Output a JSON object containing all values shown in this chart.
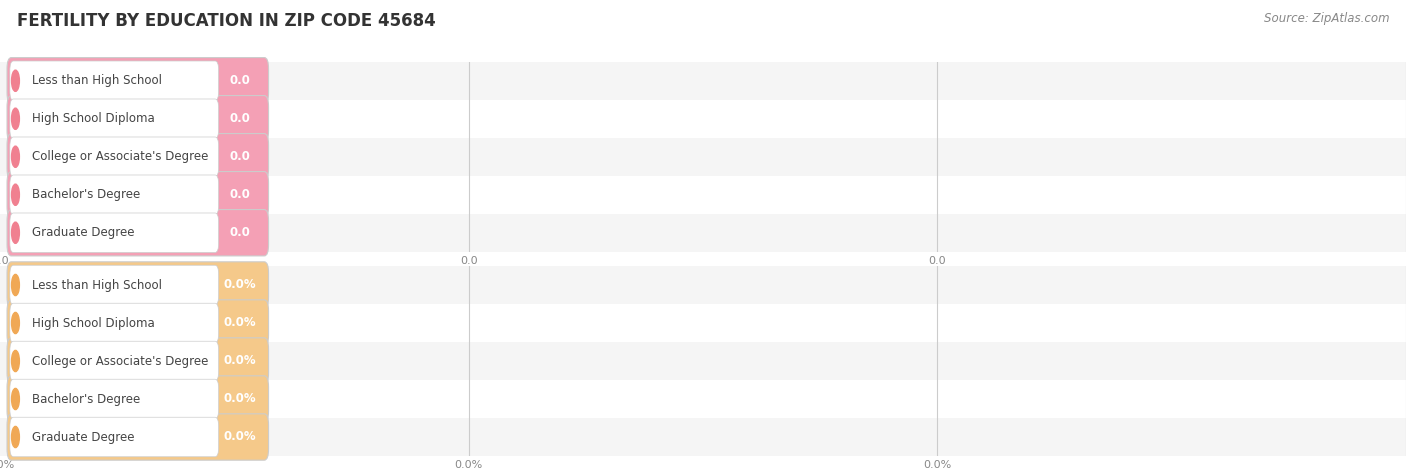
{
  "title": "FERTILITY BY EDUCATION IN ZIP CODE 45684",
  "source": "Source: ZipAtlas.com",
  "categories": [
    "Less than High School",
    "High School Diploma",
    "College or Associate's Degree",
    "Bachelor's Degree",
    "Graduate Degree"
  ],
  "top_values": [
    0.0,
    0.0,
    0.0,
    0.0,
    0.0
  ],
  "bottom_values": [
    0.0,
    0.0,
    0.0,
    0.0,
    0.0
  ],
  "top_bar_color": "#f4a0b5",
  "top_circle_color": "#f08090",
  "bottom_bar_color": "#f5c98a",
  "bottom_circle_color": "#f0a855",
  "pill_bg_color": "#ffffff",
  "pill_border_color": "#cccccc",
  "row_bg_even": "#f5f5f5",
  "row_bg_odd": "#ffffff",
  "background_color": "#ffffff",
  "title_fontsize": 12,
  "source_fontsize": 8.5,
  "label_fontsize": 8.5,
  "value_fontsize": 8.5,
  "axis_fontsize": 8,
  "axis_label_color": "#888888",
  "label_text_color": "#444444",
  "value_text_color": "#ffffff",
  "title_color": "#333333",
  "source_color": "#888888"
}
